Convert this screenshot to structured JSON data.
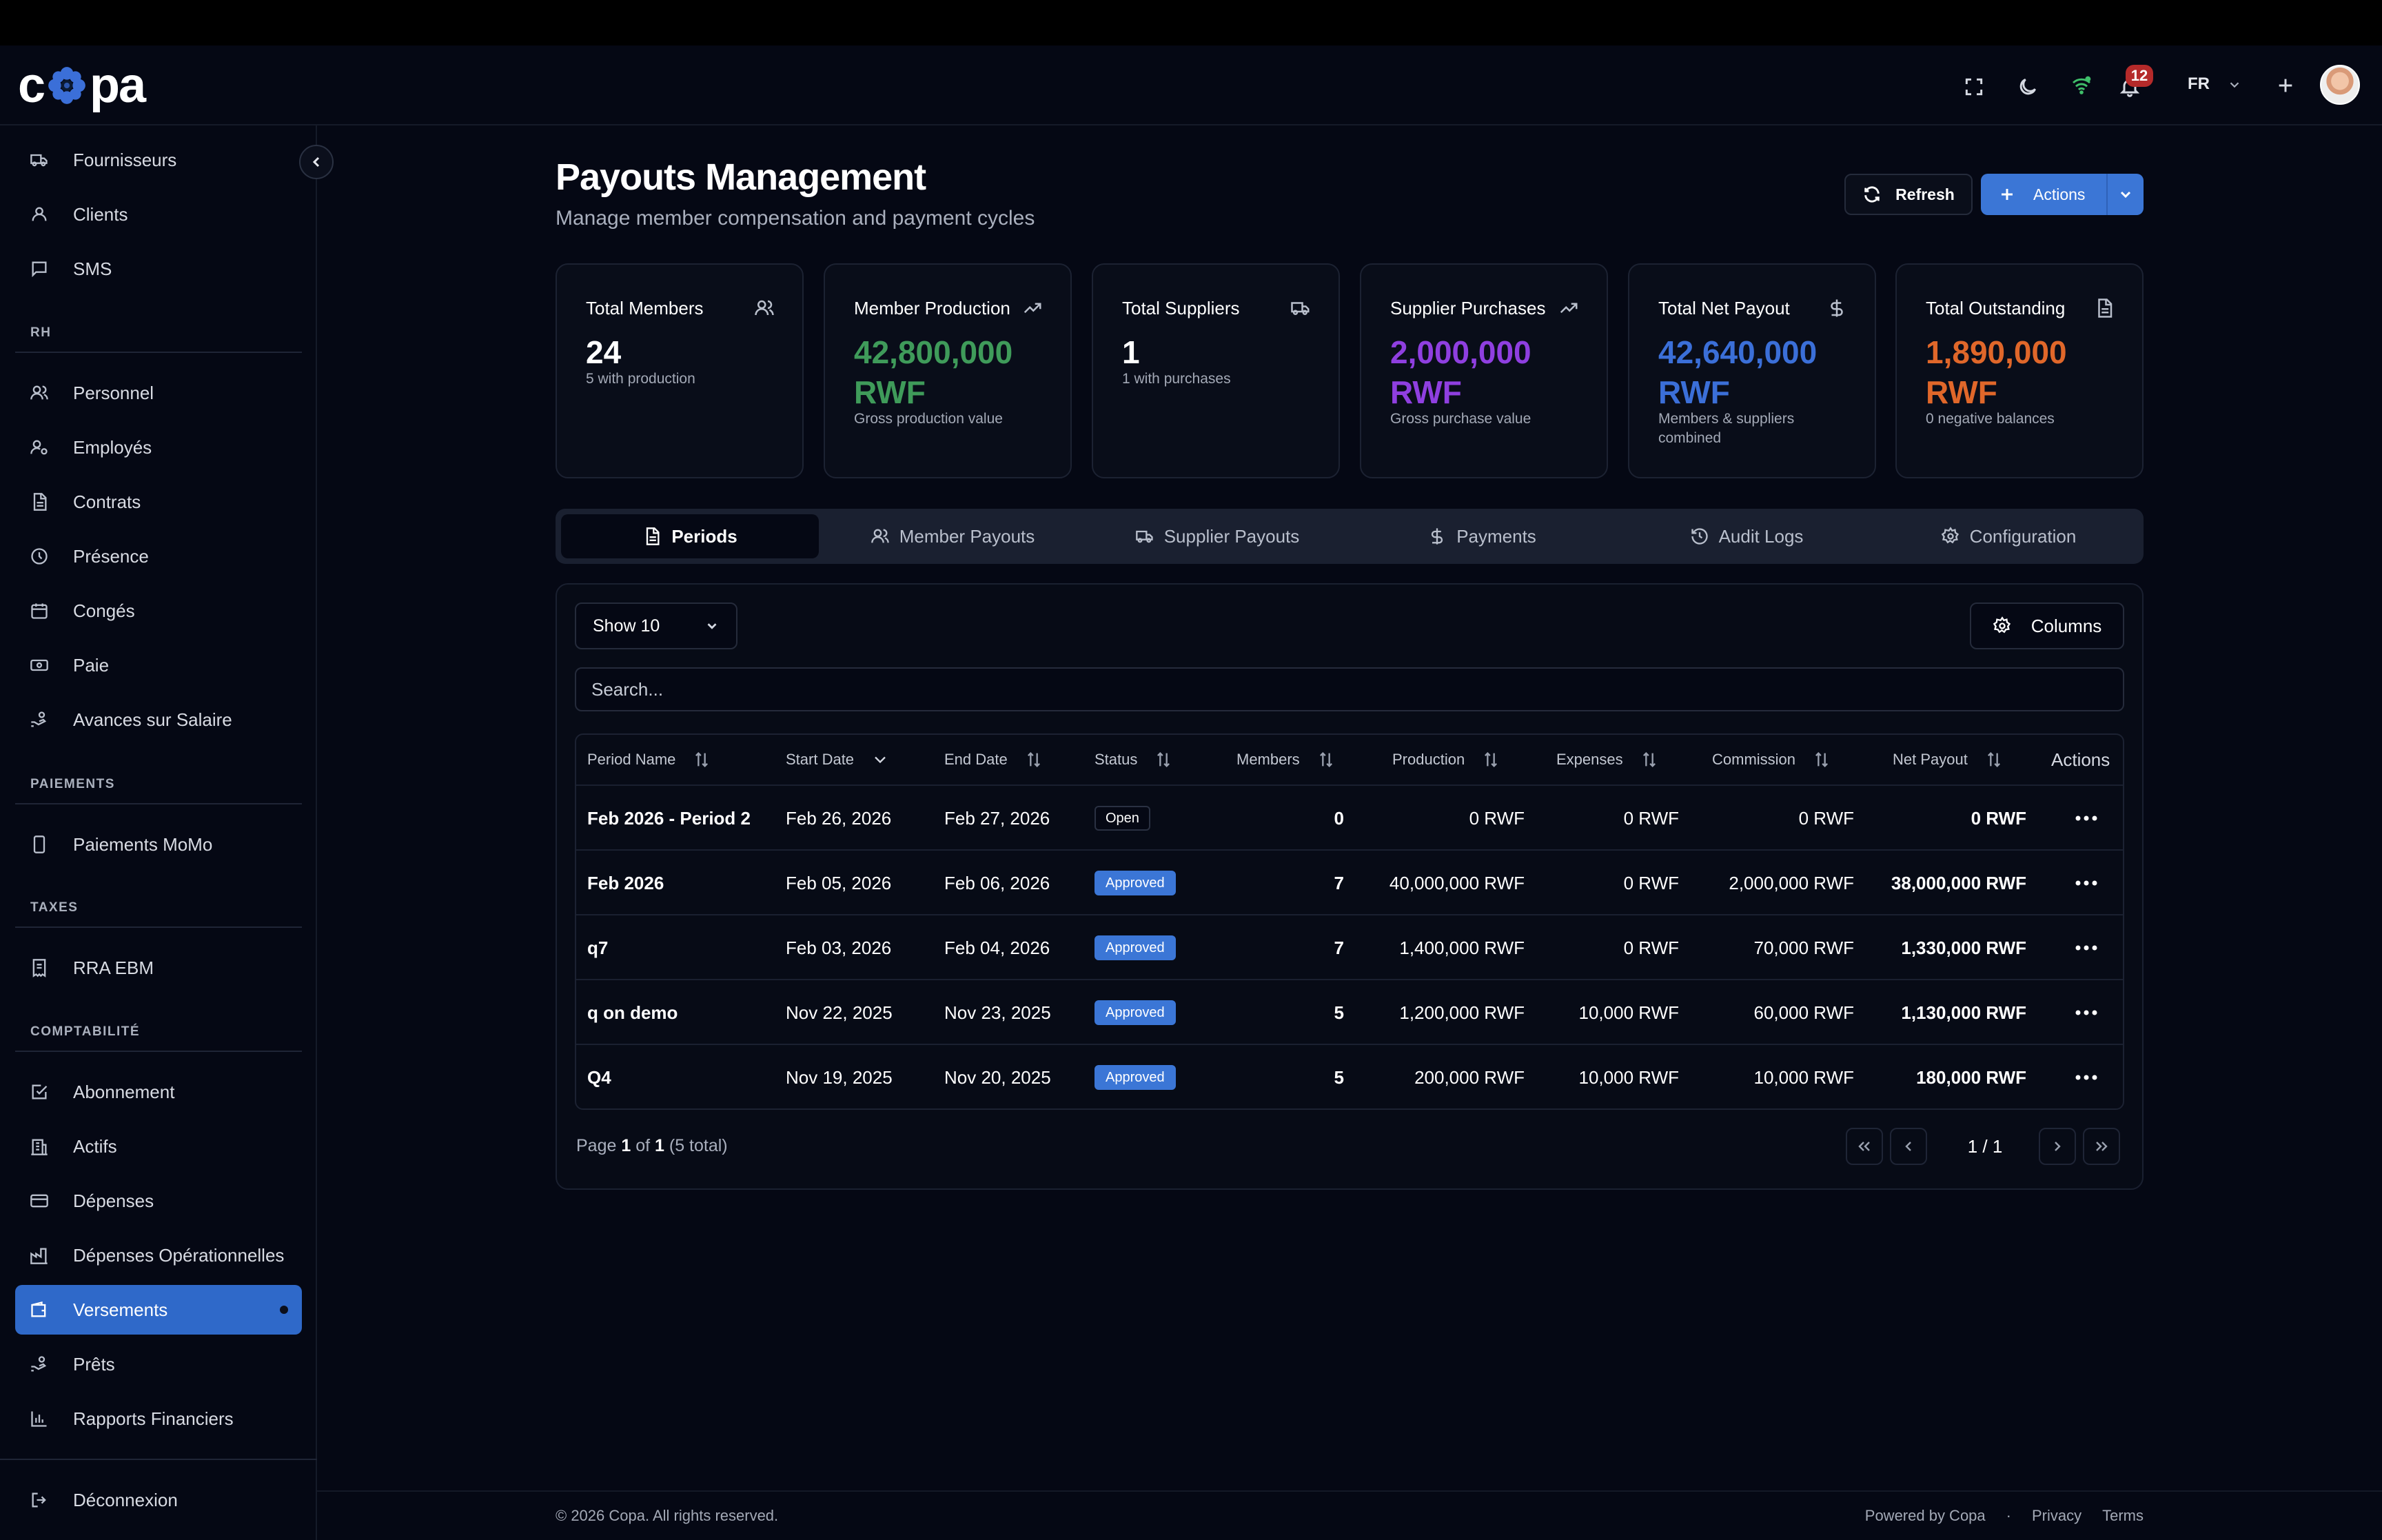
{
  "app": {
    "logo_text_left": "c",
    "logo_text_right": "pa"
  },
  "header": {
    "notification_count": "12",
    "language": "FR"
  },
  "sidebar": {
    "top_items": [
      {
        "label": "Fournisseurs",
        "icon": "truck-icon"
      },
      {
        "label": "Clients",
        "icon": "user-icon"
      },
      {
        "label": "SMS",
        "icon": "message-icon"
      }
    ],
    "sections": [
      {
        "title": "RH",
        "items": [
          {
            "label": "Personnel",
            "icon": "users-icon"
          },
          {
            "label": "Employés",
            "icon": "user-cog-icon"
          },
          {
            "label": "Contrats",
            "icon": "document-icon"
          },
          {
            "label": "Présence",
            "icon": "clock-icon"
          },
          {
            "label": "Congés",
            "icon": "calendar-icon"
          },
          {
            "label": "Paie",
            "icon": "banknote-icon"
          },
          {
            "label": "Avances sur Salaire",
            "icon": "hand-coins-icon"
          }
        ]
      },
      {
        "title": "PAIEMENTS",
        "items": [
          {
            "label": "Paiements MoMo",
            "icon": "phone-icon"
          }
        ]
      },
      {
        "title": "TAXES",
        "items": [
          {
            "label": "RRA EBM",
            "icon": "receipt-icon"
          }
        ]
      },
      {
        "title": "COMPTABILITÉ",
        "items": [
          {
            "label": "Abonnement",
            "icon": "check-square-icon"
          },
          {
            "label": "Actifs",
            "icon": "building-icon"
          },
          {
            "label": "Dépenses",
            "icon": "credit-card-icon"
          },
          {
            "label": "Dépenses Opérationnelles",
            "icon": "factory-icon"
          },
          {
            "label": "Versements",
            "icon": "wallet-icon",
            "active": true
          },
          {
            "label": "Prêts",
            "icon": "hand-coins-icon"
          },
          {
            "label": "Rapports Financiers",
            "icon": "bar-chart-icon"
          }
        ]
      }
    ],
    "logout_label": "Déconnexion"
  },
  "page": {
    "title": "Payouts Management",
    "subtitle": "Manage member compensation and payment cycles",
    "refresh_label": "Refresh",
    "actions_label": "Actions"
  },
  "stats": [
    {
      "title": "Total Members",
      "value": "24",
      "sub": "5 with production",
      "icon": "users-icon",
      "color": "#ffffff"
    },
    {
      "title": "Member Production",
      "value": "42,800,000 RWF",
      "sub": "Gross production value",
      "icon": "trending-up-icon",
      "color": "#3f9b5a"
    },
    {
      "title": "Total Suppliers",
      "value": "1",
      "sub": "1 with purchases",
      "icon": "truck-icon",
      "color": "#ffffff"
    },
    {
      "title": "Supplier Purchases",
      "value": "2,000,000 RWF",
      "sub": "Gross purchase value",
      "icon": "trending-up-icon",
      "color": "#8f3fe0"
    },
    {
      "title": "Total Net Payout",
      "value": "42,640,000 RWF",
      "sub": "Members & suppliers combined",
      "icon": "dollar-icon",
      "color": "#3b6fd8"
    },
    {
      "title": "Total Outstanding",
      "value": "1,890,000 RWF",
      "sub": "0 negative balances",
      "icon": "document-icon",
      "color": "#e0672a"
    }
  ],
  "tabs": [
    {
      "label": "Periods",
      "icon": "document-icon",
      "active": true
    },
    {
      "label": "Member Payouts",
      "icon": "users-icon"
    },
    {
      "label": "Supplier Payouts",
      "icon": "truck-icon"
    },
    {
      "label": "Payments",
      "icon": "dollar-icon"
    },
    {
      "label": "Audit Logs",
      "icon": "history-icon"
    },
    {
      "label": "Configuration",
      "icon": "gear-icon"
    }
  ],
  "table": {
    "show_label": "Show 10",
    "columns_label": "Columns",
    "search_placeholder": "Search...",
    "headers": [
      "Period Name",
      "Start Date",
      "End Date",
      "Status",
      "Members",
      "Production",
      "Expenses",
      "Commission",
      "Net Payout",
      "Actions"
    ],
    "rows": [
      {
        "name": "Feb 2026 - Period 2",
        "start": "Feb 26, 2026",
        "end": "Feb 27, 2026",
        "status": "Open",
        "members": "0",
        "production": "0 RWF",
        "expenses": "0 RWF",
        "commission": "0 RWF",
        "net": "0 RWF"
      },
      {
        "name": "Feb 2026",
        "start": "Feb 05, 2026",
        "end": "Feb 06, 2026",
        "status": "Approved",
        "members": "7",
        "production": "40,000,000 RWF",
        "expenses": "0 RWF",
        "commission": "2,000,000 RWF",
        "net": "38,000,000 RWF"
      },
      {
        "name": "q7",
        "start": "Feb 03, 2026",
        "end": "Feb 04, 2026",
        "status": "Approved",
        "members": "7",
        "production": "1,400,000 RWF",
        "expenses": "0 RWF",
        "commission": "70,000 RWF",
        "net": "1,330,000 RWF"
      },
      {
        "name": "q on demo",
        "start": "Nov 22, 2025",
        "end": "Nov 23, 2025",
        "status": "Approved",
        "members": "5",
        "production": "1,200,000 RWF",
        "expenses": "10,000 RWF",
        "commission": "60,000 RWF",
        "net": "1,130,000 RWF"
      },
      {
        "name": "Q4",
        "start": "Nov 19, 2025",
        "end": "Nov 20, 2025",
        "status": "Approved",
        "members": "5",
        "production": "200,000 RWF",
        "expenses": "10,000 RWF",
        "commission": "10,000 RWF",
        "net": "180,000 RWF"
      }
    ],
    "pager": {
      "prefix": "Page",
      "current": "1",
      "of": "of",
      "total_pages": "1",
      "total_text": "(5 total)",
      "index": "1 / 1"
    }
  },
  "footer": {
    "copyright": "© 2026 Copa. All rights reserved.",
    "powered": "Powered by Copa",
    "separator": "·",
    "privacy": "Privacy",
    "terms": "Terms"
  }
}
